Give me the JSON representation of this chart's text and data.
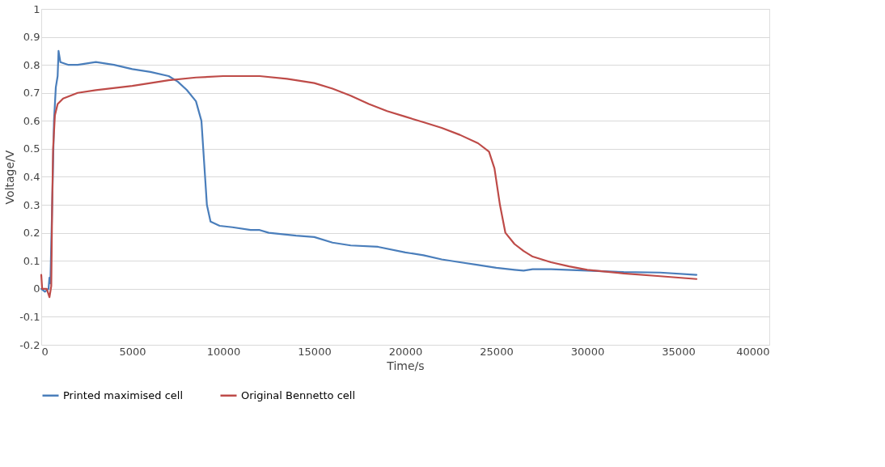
{
  "chart_data": {
    "type": "line",
    "xlabel": "Time/s",
    "ylabel": "Voltage/V",
    "xlim": [
      0,
      40000
    ],
    "xticks": [
      0,
      5000,
      10000,
      15000,
      20000,
      25000,
      30000,
      35000,
      40000
    ],
    "ylim": [
      -0.2,
      1
    ],
    "yticks": [
      -0.2,
      -0.1,
      0,
      0.1,
      0.2,
      0.3,
      0.4,
      0.5,
      0.6,
      0.7,
      0.8,
      0.9,
      1
    ],
    "grid": "y",
    "legend": "bottom",
    "marker": "none",
    "line_style": "solid",
    "series": [
      {
        "name": "Printed maximised cell",
        "color": "#4a7ebb",
        "x": [
          0,
          200,
          400,
          450,
          500,
          600,
          700,
          800,
          900,
          950,
          1050,
          1500,
          2000,
          3000,
          4000,
          5000,
          6000,
          7000,
          7500,
          8000,
          8500,
          8800,
          8950,
          9100,
          9300,
          9800,
          10500,
          11500,
          12000,
          12500,
          14000,
          15000,
          16000,
          17000,
          18500,
          20000,
          21000,
          22000,
          23000,
          24000,
          25000,
          26000,
          26500,
          27000,
          28000,
          30000,
          32000,
          34000,
          36000
        ],
        "values": [
          0.0,
          -0.01,
          0.0,
          0.04,
          0.02,
          0.3,
          0.6,
          0.72,
          0.76,
          0.85,
          0.81,
          0.8,
          0.8,
          0.81,
          0.8,
          0.785,
          0.775,
          0.76,
          0.74,
          0.71,
          0.67,
          0.6,
          0.45,
          0.3,
          0.24,
          0.225,
          0.22,
          0.21,
          0.21,
          0.2,
          0.19,
          0.185,
          0.165,
          0.155,
          0.15,
          0.13,
          0.12,
          0.105,
          0.095,
          0.085,
          0.075,
          0.068,
          0.065,
          0.07,
          0.07,
          0.065,
          0.06,
          0.058,
          0.05
        ]
      },
      {
        "name": "Original Bennetto cell",
        "color": "#be4b48",
        "x": [
          0,
          50,
          300,
          450,
          550,
          600,
          650,
          750,
          900,
          1200,
          2000,
          3000,
          5000,
          7000,
          8500,
          10000,
          12000,
          13500,
          15000,
          16000,
          17000,
          18000,
          19000,
          20000,
          21000,
          22000,
          23000,
          24000,
          24600,
          24900,
          25200,
          25500,
          26000,
          26500,
          27000,
          28000,
          29000,
          30000,
          32000,
          34000,
          36000
        ],
        "values": [
          0.05,
          0.0,
          0.0,
          -0.03,
          0.01,
          0.3,
          0.5,
          0.62,
          0.66,
          0.68,
          0.7,
          0.71,
          0.725,
          0.745,
          0.755,
          0.76,
          0.76,
          0.75,
          0.735,
          0.715,
          0.69,
          0.66,
          0.635,
          0.615,
          0.595,
          0.575,
          0.55,
          0.52,
          0.49,
          0.43,
          0.3,
          0.2,
          0.16,
          0.135,
          0.115,
          0.095,
          0.08,
          0.068,
          0.055,
          0.045,
          0.035
        ]
      }
    ]
  }
}
